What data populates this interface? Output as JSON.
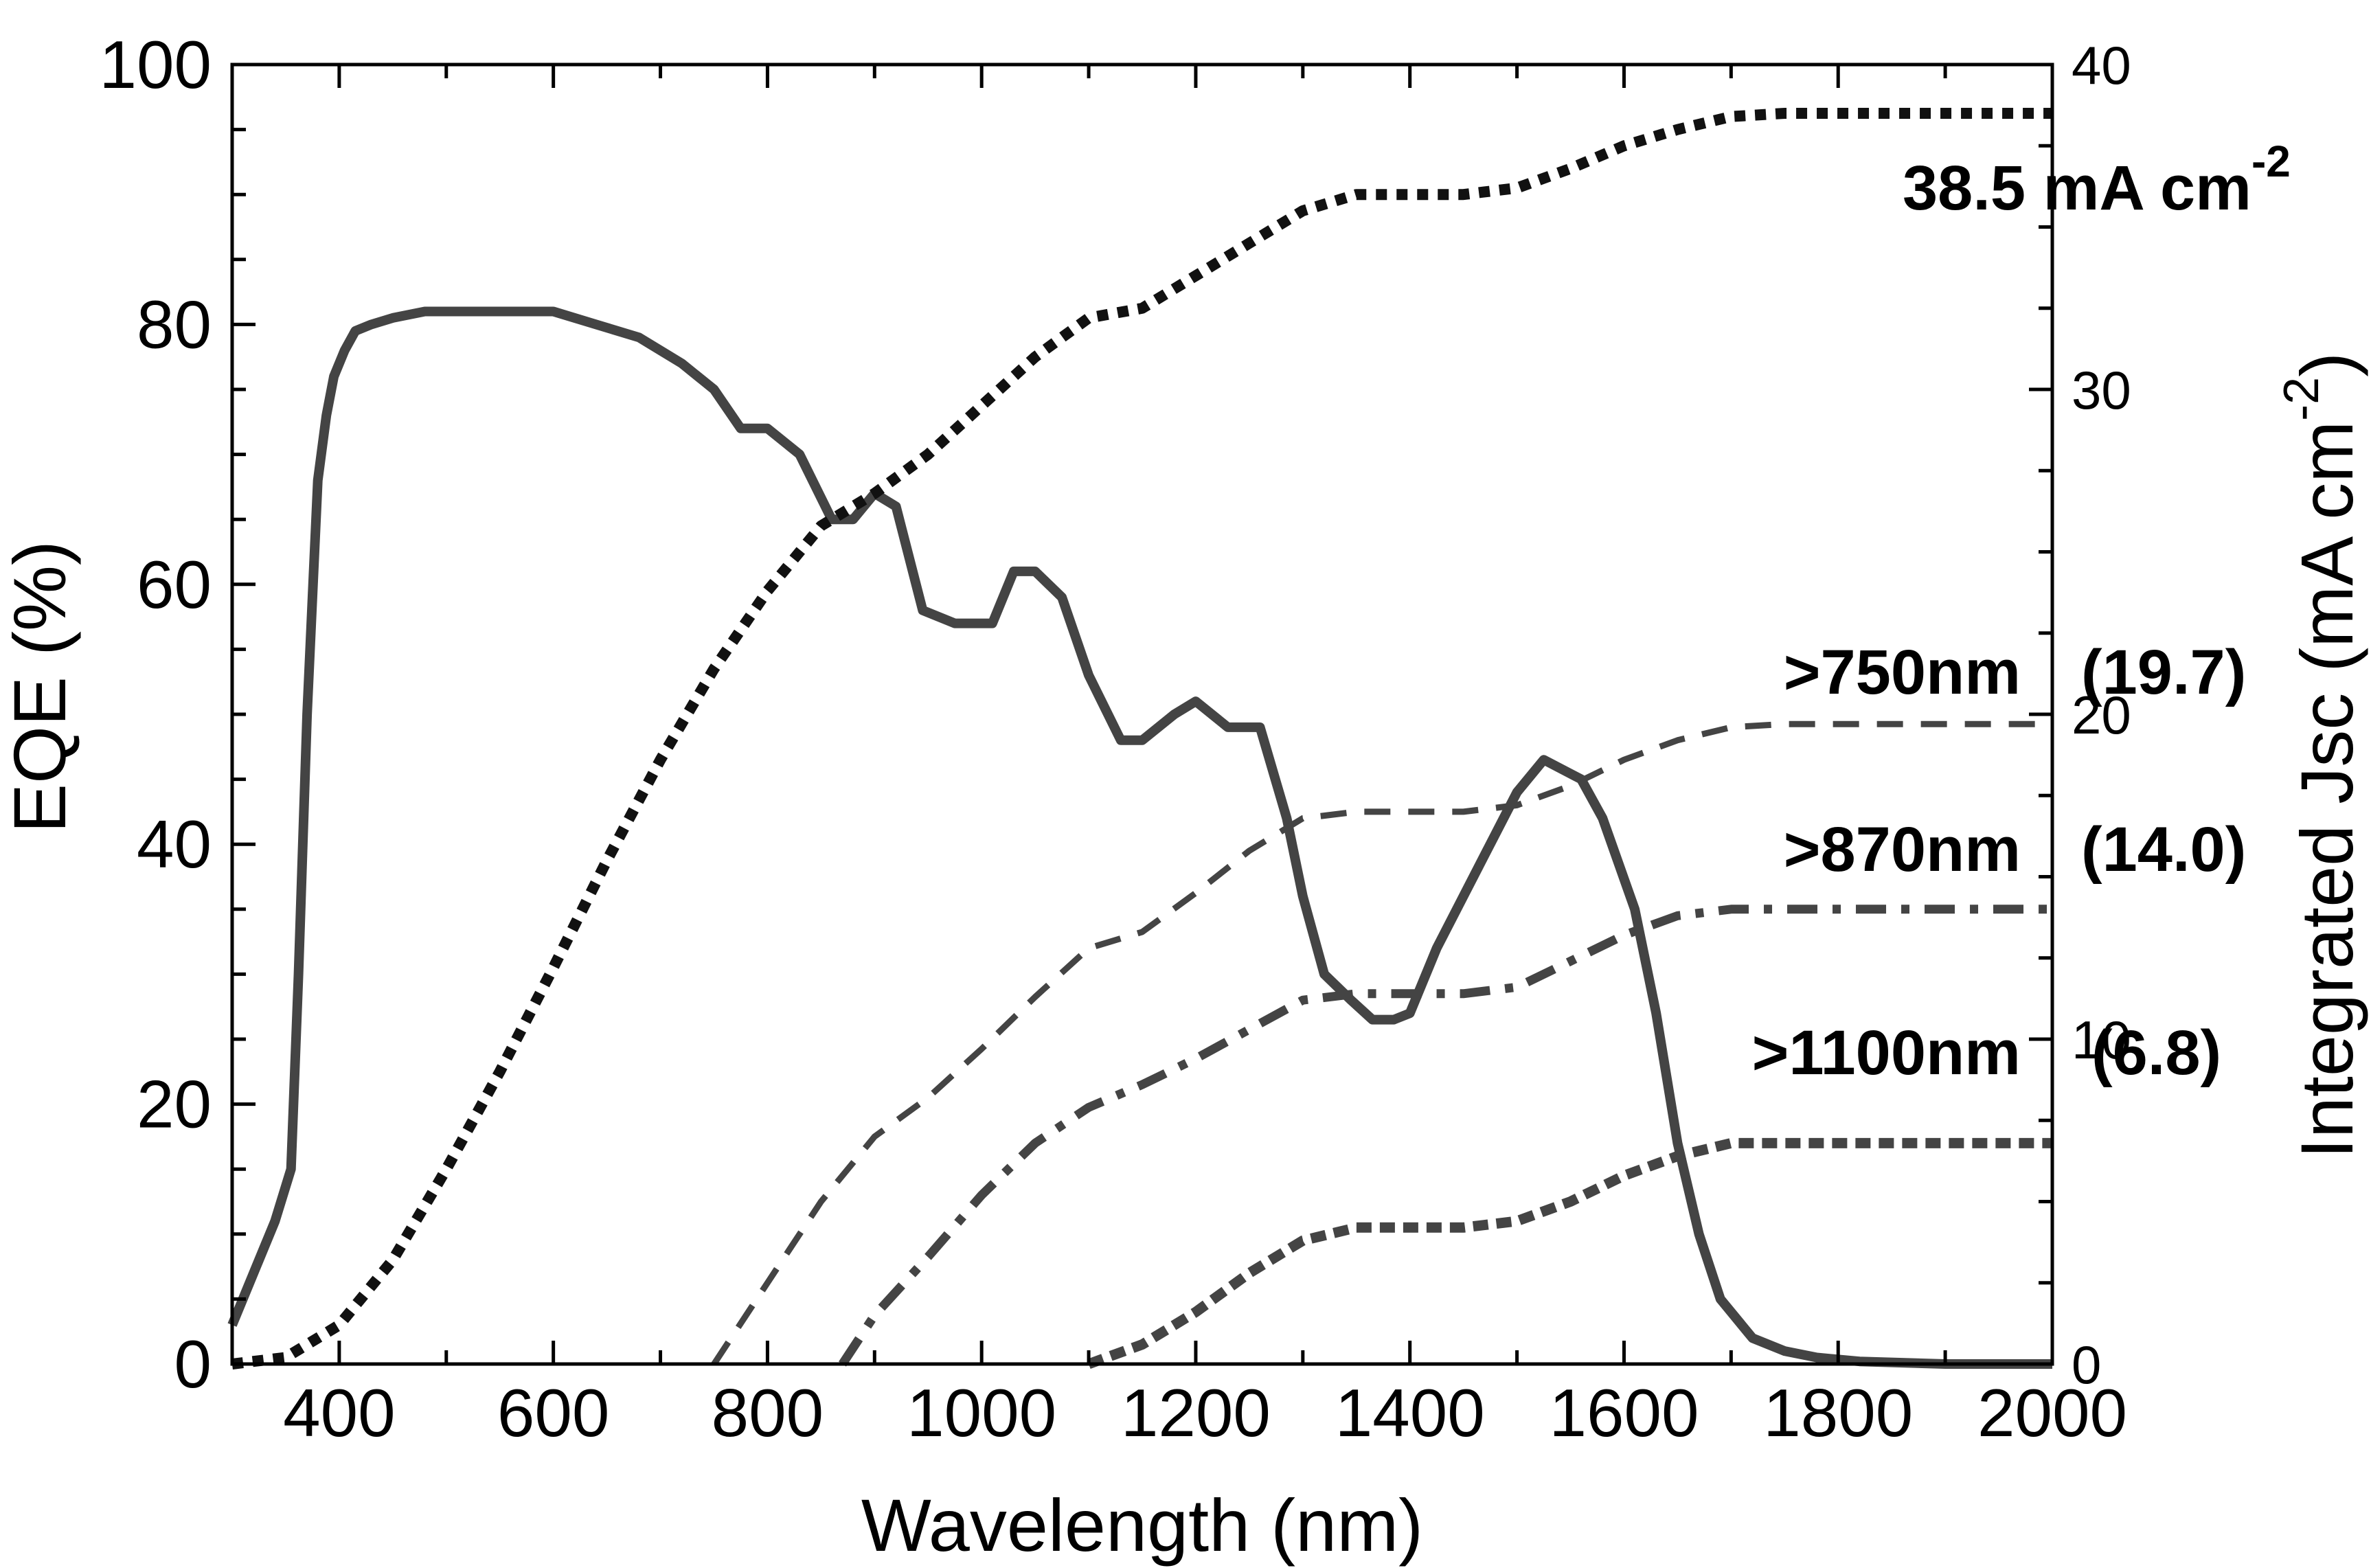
{
  "chart_data": {
    "type": "line",
    "title": "",
    "xlabel": "Wavelength (nm)",
    "ylabel": "EQE (%)",
    "y2label": "Integrated Jsc (mA cm",
    "y2label_sup": "-2",
    "y2label_close": ")",
    "xlim": [
      300,
      2000
    ],
    "ylim": [
      0,
      100
    ],
    "y2lim": [
      0,
      40
    ],
    "xticks": [
      400,
      600,
      800,
      1000,
      1200,
      1400,
      1600,
      1800,
      2000
    ],
    "xtick_labels": [
      "400",
      "600",
      "800",
      "1000",
      "1200",
      "1400",
      "1600",
      "1800",
      "2000"
    ],
    "yticks": [
      0,
      20,
      40,
      60,
      80,
      100
    ],
    "ytick_labels": [
      "0",
      "20",
      "40",
      "60",
      "80",
      "100"
    ],
    "y2ticks": [
      0,
      10,
      20,
      30,
      40
    ],
    "y2tick_labels": [
      "0",
      "10",
      "20",
      "30",
      "40"
    ],
    "grid": false,
    "series": [
      {
        "axis": "left",
        "style": "solid",
        "color": "#444444",
        "x": [
          300,
          320,
          340,
          355,
          362,
          370,
          380,
          388,
          395,
          405,
          415,
          430,
          450,
          480,
          520,
          560,
          600,
          640,
          680,
          720,
          750,
          775,
          800,
          830,
          860,
          880,
          900,
          920,
          945,
          975,
          1010,
          1030,
          1050,
          1075,
          1100,
          1130,
          1150,
          1180,
          1200,
          1230,
          1260,
          1285,
          1300,
          1320,
          1345,
          1365,
          1385,
          1400,
          1425,
          1450,
          1475,
          1500,
          1525,
          1560,
          1580,
          1610,
          1630,
          1650,
          1670,
          1690,
          1720,
          1750,
          1780,
          1820,
          1860,
          1900,
          1950,
          2000
        ],
        "y": [
          3,
          7,
          11,
          15,
          30,
          50,
          68,
          73,
          76,
          78,
          79.5,
          80,
          80.5,
          81,
          81,
          81,
          81,
          80,
          79,
          77,
          75,
          72,
          72,
          70,
          65,
          65,
          67,
          66,
          58,
          57,
          57,
          61,
          61,
          59,
          53,
          48,
          48,
          50,
          51,
          49,
          49,
          42,
          36,
          30,
          28,
          26.5,
          26.5,
          27,
          32,
          36,
          40,
          44,
          46.5,
          45,
          42,
          35,
          27,
          17,
          10,
          5,
          2,
          1,
          0.5,
          0.2,
          0.1,
          0,
          0,
          0
        ]
      },
      {
        "axis": "right",
        "style": "dotted-heavy",
        "color": "#111111",
        "end_label": "38.5 mA cm",
        "end_label_sup": "-2",
        "x": [
          300,
          350,
          400,
          450,
          500,
          550,
          600,
          650,
          700,
          750,
          800,
          850,
          900,
          950,
          1000,
          1050,
          1100,
          1150,
          1200,
          1250,
          1300,
          1350,
          1400,
          1450,
          1500,
          1550,
          1600,
          1650,
          1700,
          1750,
          1800,
          1850,
          1900,
          1950,
          2000
        ],
        "y": [
          0,
          0.2,
          1.2,
          3.2,
          6.0,
          9.0,
          12.2,
          15.5,
          18.6,
          21.4,
          23.8,
          25.8,
          26.8,
          28.0,
          29.5,
          31.0,
          32.2,
          32.5,
          33.5,
          34.5,
          35.5,
          36.0,
          36.0,
          36.0,
          36.2,
          36.8,
          37.5,
          38.0,
          38.4,
          38.5,
          38.5,
          38.5,
          38.5,
          38.5,
          38.5
        ]
      },
      {
        "axis": "right",
        "style": "dashed",
        "color": "#444444",
        "label": ">750nm",
        "value_label": "(19.7)",
        "x": [
          750,
          800,
          850,
          900,
          950,
          1000,
          1050,
          1100,
          1150,
          1200,
          1250,
          1300,
          1350,
          1400,
          1450,
          1500,
          1550,
          1600,
          1650,
          1700,
          1750,
          1800,
          1850,
          1900,
          1950,
          2000
        ],
        "y": [
          0,
          2.5,
          5.0,
          7.0,
          8.2,
          9.7,
          11.3,
          12.8,
          13.3,
          14.5,
          15.8,
          16.8,
          17.0,
          17.0,
          17.0,
          17.2,
          17.8,
          18.6,
          19.2,
          19.6,
          19.7,
          19.7,
          19.7,
          19.7,
          19.7,
          19.7
        ]
      },
      {
        "axis": "right",
        "style": "dash-dot",
        "color": "#444444",
        "label": ">870nm",
        "value_label": "(14.0)",
        "x": [
          870,
          900,
          950,
          1000,
          1050,
          1100,
          1150,
          1200,
          1250,
          1300,
          1350,
          1400,
          1450,
          1500,
          1550,
          1600,
          1650,
          1700,
          1750,
          1800,
          1850,
          1900,
          1950,
          2000
        ],
        "y": [
          0,
          1.5,
          3.3,
          5.2,
          6.8,
          7.9,
          8.6,
          9.4,
          10.3,
          11.2,
          11.4,
          11.4,
          11.4,
          11.6,
          12.4,
          13.2,
          13.8,
          14.0,
          14.0,
          14.0,
          14.0,
          14.0,
          14.0,
          14.0
        ]
      },
      {
        "axis": "right",
        "style": "short-dash-heavy",
        "color": "#444444",
        "label": ">1100nm",
        "value_label": "(6.8)",
        "x": [
          1100,
          1150,
          1200,
          1250,
          1300,
          1350,
          1400,
          1450,
          1500,
          1550,
          1600,
          1650,
          1700,
          1750,
          1800,
          1850,
          1900,
          1950,
          2000
        ],
        "y": [
          0,
          0.6,
          1.6,
          2.8,
          3.8,
          4.2,
          4.2,
          4.2,
          4.4,
          5.0,
          5.8,
          6.4,
          6.8,
          6.8,
          6.8,
          6.8,
          6.8,
          6.8,
          6.8
        ]
      }
    ]
  }
}
